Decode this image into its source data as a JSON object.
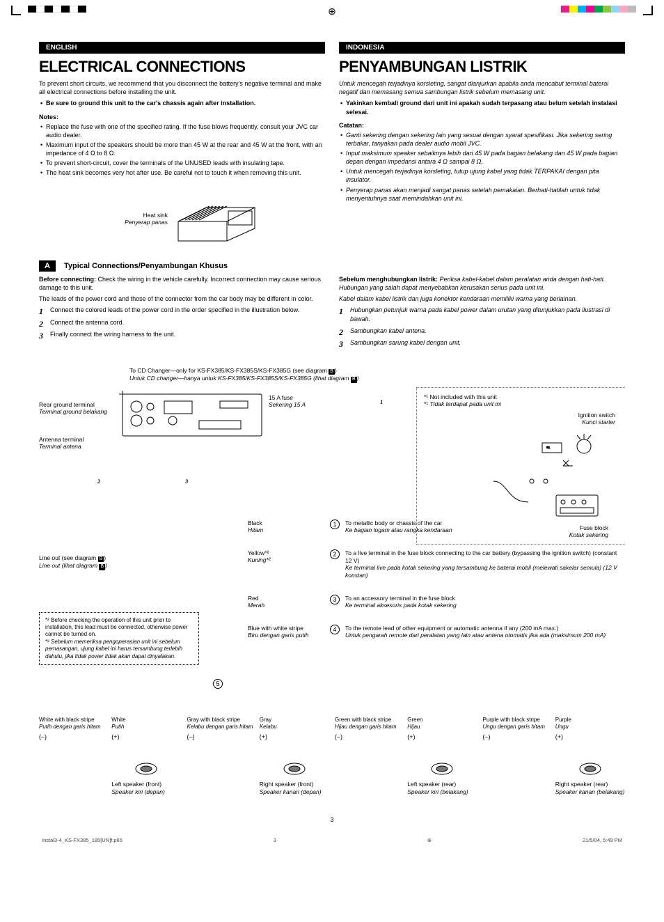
{
  "reg_colors_left": [
    "#000000",
    "#ffffff",
    "#000000",
    "#ffffff",
    "#000000",
    "#ffffff",
    "#000000"
  ],
  "reg_colors_right": [
    "#e61e8c",
    "#fff200",
    "#00aeef",
    "#ec008c",
    "#00a651",
    "#8dc63f",
    "#92d6f4",
    "#f9a6cb",
    "#bbbbbb"
  ],
  "english": {
    "lang": "ENGLISH",
    "title": "ELECTRICAL CONNECTIONS",
    "intro": "To prevent short circuits, we recommend that you disconnect the battery's negative terminal and make all electrical connections before installing the unit.",
    "bullet_bold": "Be sure to ground this unit to the car's chassis again after installation.",
    "notes_h": "Notes:",
    "notes": [
      "Replace the fuse with one of the specified rating. If the fuse blows frequently, consult your JVC car audio dealer.",
      "Maximum input of the speakers should be more than 45 W at the rear and 45 W at the front, with an impedance of 4 Ω to 8 Ω.",
      "To prevent short-circuit, cover the terminals of the UNUSED leads with insulating tape.",
      "The heat sink becomes very hot after use. Be careful not to touch it when removing this unit."
    ],
    "heatsink_l1": "Heat sink",
    "heatsink_l2": "Penyerap panas",
    "section_a": "A",
    "section_a_title": "Typical Connections/Penyambungan Khusus",
    "before_bold": "Before connecting:",
    "before": " Check the wiring in the vehicle carefully. Incorrect connection may cause serious damage to this unit.",
    "before2": "The leads of the power cord and those of the connector from the car body may be different in color.",
    "steps": [
      "Connect the colored leads of the power cord in the order specified in the illustration below.",
      "Connect the antenna cord.",
      "Finally connect the wiring harness to the unit."
    ]
  },
  "indonesia": {
    "lang": "INDONESIA",
    "title": "PENYAMBUNGAN LISTRIK",
    "intro": "Untuk mencegah terjadinya korsleting, sangat dianjurkan apabila anda mencabut terminal baterai negatif dan memasang semua sambungan listrik sebelum memasang unit.",
    "bullet_bold": "Yakinkan kembali ground dari unit ini apakah sudah terpasang atau belum setelah instalasi selesai.",
    "notes_h": "Catatan:",
    "notes": [
      "Ganti sekering dengan sekering lain yang sesuai dengan syarat spesifikasi. Jika sekering sering terbakar, tanyakan pada dealer audio mobil JVC.",
      "Input maksimum speaker sebaiknya lebih dari 45 W pada bagian belakang dan 45 W pada bagian depan dengan impedansi antara 4 Ω sampai 8 Ω.",
      "Untuk mencegah terjadinya korsleting, tutup ujung kabel yang tidak TERPAKAI dengan pita insulator.",
      "Penyerap panas akan menjadi sangat panas setelah pemakaian. Berhati-hatilah untuk tidak menyentuhnya saat memindahkan unit ini."
    ],
    "before_bold": "Sebelum menghubungkan listrik:",
    "before": " Periksa kabel-kabel dalam peralatan anda dengan hati-hati. Hubungan yang salah dapat menyebabkan kerusakan serius pada unit ini.",
    "before2": "Kabel dalam kabel listrik dan juga konektor kendaraan memiliki warna yang berlainan.",
    "steps": [
      "Hubungkan petunjuk warna pada kabel power dalam urutan yang ditunjukkan pada ilustrasi di bawah.",
      "Sambungkan kabel antena.",
      "Sambungkan sarung kabel dengan unit."
    ]
  },
  "diagram": {
    "cd_note_en": "To CD Changer—only for KS-FX385/KS-FX385S/KS-FX385G (see diagram ",
    "cd_note_id": "Untuk CD changer—hanya untuk KS-FX385/KS-FX385S/KS-FX385G (lihat diagram ",
    "badge": "B",
    "rear_ground_en": "Rear ground terminal",
    "rear_ground_id": "Terminal ground belakang",
    "antenna_en": "Antenna terminal",
    "antenna_id": "Terminal antena",
    "lineout_en": "Line out (see diagram ",
    "lineout_id": "Line out (lihat diagram ",
    "fuse_en": "15 A fuse",
    "fuse_id": "Sekering 15 A",
    "star1_en": "Not included with this unit",
    "star1_id": "Tidak terdapat pada unit ini",
    "ignition_en": "Ignition switch",
    "ignition_id": "Kunci starter",
    "fuseblock_en": "Fuse block",
    "fuseblock_id": "Kotak sekering",
    "big1": "1",
    "big2": "2",
    "big3": "3",
    "wires": [
      {
        "num": "1",
        "color_en": "Black",
        "color_id": "Hitam",
        "desc_en": "To metallic body or chassis of the car",
        "desc_id": "Ke bagian logam atau rangka kendaraan"
      },
      {
        "num": "2",
        "color_en": "Yellow*²",
        "color_id": "Kuning*²",
        "desc_en": "To a live terminal in the fuse block connecting to the car battery (bypassing the ignition switch) (constant 12 V)",
        "desc_id": "Ke terminal live pada kotak sekering yang tersambung ke baterai mobil (melewati sakelar semula) (12 V konstan)"
      },
      {
        "num": "3",
        "color_en": "Red",
        "color_id": "Merah",
        "desc_en": "To an accessory terminal in the fuse block",
        "desc_id": "Ke terminal aksesoris pada kotak sekering"
      },
      {
        "num": "4",
        "color_en": "Blue with white stripe",
        "color_id": "Biru dengan garis putih",
        "desc_en": "To the remote lead of other equipment or automatic antenna if any (200 mA max.)",
        "desc_id": "Untuk pengarah remote dari peralatan yang lain atau antena otomatis jika ada (maksimum 200 mA)"
      }
    ],
    "circ5": "5",
    "foot_en": "Before checking the operation of this unit prior to installation, this lead must be connected, otherwise power cannot be turned on.",
    "foot_id": "Sebelum memeriksa pengoperasian unit ini sebelum pemasangan, ujung kabel ini harus tersambung terlebih dahulu, jika tidak power tidak akan dapat dinyalakan.",
    "speakers": [
      {
        "c1_en": "White with black stripe",
        "c1_id": "Putih dengan garis hitam",
        "c2_en": "White",
        "c2_id": "Putih",
        "name_en": "Left speaker (front)",
        "name_id": "Speaker kiri (depan)"
      },
      {
        "c1_en": "Gray with black stripe",
        "c1_id": "Kelabu dengan garis hitam",
        "c2_en": "Gray",
        "c2_id": "Kelabu",
        "name_en": "Right speaker (front)",
        "name_id": "Speaker kanan (depan)"
      },
      {
        "c1_en": "Green with black stripe",
        "c1_id": "Hijau dengan garis hitam",
        "c2_en": "Green",
        "c2_id": "Hijau",
        "name_en": "Left speaker (rear)",
        "name_id": "Speaker kiri (belakang)"
      },
      {
        "c1_en": "Purple with black stripe",
        "c1_id": "Ungu dengan garis hitam",
        "c2_en": "Purple",
        "c2_id": "Ungu",
        "name_en": "Right speaker (rear)",
        "name_id": "Speaker kanan (belakang)"
      }
    ],
    "polarity_neg": "(–)",
    "polarity_pos": "(+)"
  },
  "page_num": "3",
  "footer_file": "Instal3-4_KS-FX385_185[UN]f.p65",
  "footer_page": "3",
  "footer_date": "21/5/04, 5:49 PM"
}
